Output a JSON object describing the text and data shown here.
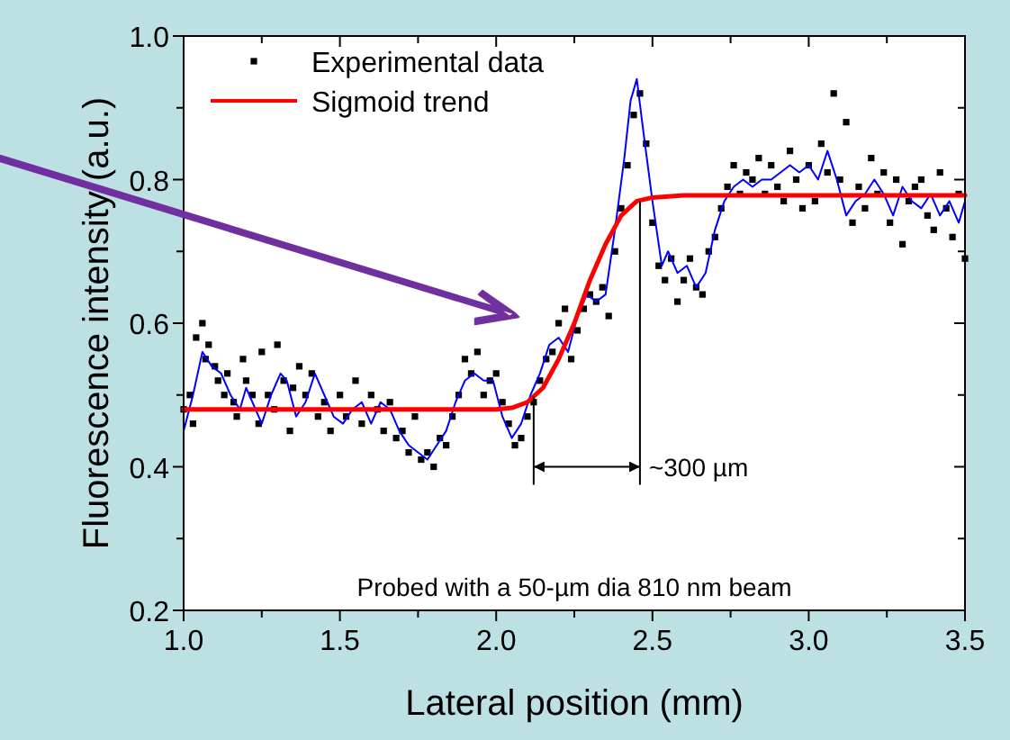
{
  "chart_data": {
    "type": "scatter",
    "xlabel": "Lateral position (mm)",
    "ylabel": "Fluorescence intensity (a.u.)",
    "xlim": [
      1.0,
      3.5
    ],
    "ylim": [
      0.2,
      1.0
    ],
    "xticks": [
      {
        "value": 1.0,
        "label": "1.0"
      },
      {
        "value": 1.25,
        "label": null
      },
      {
        "value": 1.5,
        "label": "1.5"
      },
      {
        "value": 1.75,
        "label": null
      },
      {
        "value": 2.0,
        "label": "2.0"
      },
      {
        "value": 2.25,
        "label": null
      },
      {
        "value": 2.5,
        "label": "2.5"
      },
      {
        "value": 2.75,
        "label": null
      },
      {
        "value": 3.0,
        "label": "3.0"
      },
      {
        "value": 3.25,
        "label": null
      },
      {
        "value": 3.5,
        "label": "3.5"
      }
    ],
    "yticks": [
      {
        "value": 0.2,
        "label": "0.2"
      },
      {
        "value": 0.3,
        "label": null
      },
      {
        "value": 0.4,
        "label": "0.4"
      },
      {
        "value": 0.5,
        "label": null
      },
      {
        "value": 0.6,
        "label": "0.6"
      },
      {
        "value": 0.7,
        "label": null
      },
      {
        "value": 0.8,
        "label": "0.8"
      },
      {
        "value": 0.9,
        "label": null
      },
      {
        "value": 1.0,
        "label": "1.0"
      }
    ],
    "grid": false,
    "legend": "top left",
    "annotations": [
      {
        "text": "~300 µm",
        "x": 2.46,
        "y": 0.77
      },
      "Probed with a 50-µm dia 810 nm beam"
    ],
    "series": [
      {
        "name": "Experimental data",
        "marker": "square",
        "color": "#000000",
        "x": [
          1.0,
          1.02,
          1.03,
          1.04,
          1.06,
          1.07,
          1.08,
          1.1,
          1.11,
          1.13,
          1.14,
          1.16,
          1.17,
          1.19,
          1.2,
          1.22,
          1.24,
          1.25,
          1.27,
          1.29,
          1.3,
          1.32,
          1.34,
          1.35,
          1.37,
          1.39,
          1.41,
          1.43,
          1.45,
          1.47,
          1.5,
          1.52,
          1.55,
          1.57,
          1.6,
          1.62,
          1.64,
          1.66,
          1.68,
          1.7,
          1.72,
          1.74,
          1.76,
          1.78,
          1.8,
          1.82,
          1.84,
          1.86,
          1.88,
          1.9,
          1.92,
          1.94,
          1.96,
          1.98,
          2.0,
          2.02,
          2.04,
          2.06,
          2.08,
          2.1,
          2.12,
          2.14,
          2.16,
          2.18,
          2.2,
          2.22,
          2.24,
          2.26,
          2.28,
          2.3,
          2.32,
          2.34,
          2.36,
          2.38,
          2.4,
          2.42,
          2.44,
          2.46,
          2.48,
          2.5,
          2.52,
          2.54,
          2.56,
          2.58,
          2.6,
          2.62,
          2.64,
          2.66,
          2.68,
          2.7,
          2.72,
          2.74,
          2.76,
          2.78,
          2.8,
          2.82,
          2.84,
          2.86,
          2.88,
          2.9,
          2.92,
          2.94,
          2.96,
          2.98,
          3.0,
          3.02,
          3.04,
          3.06,
          3.08,
          3.1,
          3.12,
          3.14,
          3.16,
          3.18,
          3.2,
          3.22,
          3.24,
          3.26,
          3.28,
          3.3,
          3.32,
          3.34,
          3.36,
          3.38,
          3.4,
          3.42,
          3.44,
          3.46,
          3.48,
          3.5
        ],
        "values": [
          0.48,
          0.5,
          0.46,
          0.58,
          0.6,
          0.55,
          0.57,
          0.54,
          0.52,
          0.5,
          0.53,
          0.49,
          0.47,
          0.55,
          0.52,
          0.5,
          0.46,
          0.56,
          0.5,
          0.48,
          0.57,
          0.52,
          0.45,
          0.51,
          0.54,
          0.5,
          0.53,
          0.47,
          0.49,
          0.45,
          0.5,
          0.47,
          0.52,
          0.46,
          0.5,
          0.48,
          0.45,
          0.49,
          0.44,
          0.45,
          0.42,
          0.47,
          0.41,
          0.42,
          0.4,
          0.44,
          0.43,
          0.47,
          0.5,
          0.55,
          0.53,
          0.56,
          0.5,
          0.52,
          0.53,
          0.49,
          0.46,
          0.43,
          0.44,
          0.47,
          0.49,
          0.52,
          0.55,
          0.56,
          0.6,
          0.62,
          0.55,
          0.59,
          0.62,
          0.64,
          0.63,
          0.65,
          0.61,
          0.7,
          0.76,
          0.82,
          0.89,
          0.92,
          0.85,
          0.74,
          0.68,
          0.66,
          0.69,
          0.63,
          0.66,
          0.69,
          0.65,
          0.64,
          0.7,
          0.72,
          0.76,
          0.79,
          0.82,
          0.78,
          0.81,
          0.8,
          0.83,
          0.78,
          0.82,
          0.79,
          0.77,
          0.84,
          0.8,
          0.76,
          0.82,
          0.77,
          0.85,
          0.81,
          0.92,
          0.8,
          0.88,
          0.74,
          0.79,
          0.76,
          0.83,
          0.78,
          0.81,
          0.74,
          0.8,
          0.71,
          0.77,
          0.79,
          0.8,
          0.75,
          0.73,
          0.81,
          0.76,
          0.72,
          0.78,
          0.69
        ]
      },
      {
        "type": "line",
        "marker": "none",
        "color": "#0000ff",
        "x": [
          1.0,
          1.03,
          1.06,
          1.09,
          1.12,
          1.15,
          1.18,
          1.2,
          1.23,
          1.25,
          1.28,
          1.31,
          1.33,
          1.36,
          1.39,
          1.42,
          1.45,
          1.48,
          1.51,
          1.54,
          1.57,
          1.6,
          1.63,
          1.66,
          1.69,
          1.72,
          1.75,
          1.78,
          1.81,
          1.84,
          1.87,
          1.9,
          1.93,
          1.96,
          1.99,
          2.02,
          2.05,
          2.08,
          2.11,
          2.14,
          2.17,
          2.2,
          2.23,
          2.26,
          2.29,
          2.32,
          2.35,
          2.38,
          2.41,
          2.43,
          2.45,
          2.47,
          2.5,
          2.53,
          2.55,
          2.58,
          2.61,
          2.64,
          2.67,
          2.7,
          2.73,
          2.76,
          2.79,
          2.82,
          2.85,
          2.88,
          2.91,
          2.94,
          2.97,
          3.0,
          3.03,
          3.06,
          3.09,
          3.12,
          3.15,
          3.18,
          3.21,
          3.24,
          3.27,
          3.3,
          3.33,
          3.36,
          3.39,
          3.42,
          3.45,
          3.48,
          3.5
        ],
        "values": [
          0.45,
          0.5,
          0.56,
          0.54,
          0.53,
          0.5,
          0.48,
          0.51,
          0.48,
          0.46,
          0.5,
          0.53,
          0.52,
          0.47,
          0.49,
          0.53,
          0.5,
          0.47,
          0.46,
          0.48,
          0.49,
          0.46,
          0.49,
          0.48,
          0.45,
          0.43,
          0.42,
          0.41,
          0.43,
          0.45,
          0.49,
          0.52,
          0.53,
          0.52,
          0.52,
          0.47,
          0.44,
          0.46,
          0.5,
          0.53,
          0.57,
          0.58,
          0.56,
          0.61,
          0.64,
          0.63,
          0.64,
          0.73,
          0.83,
          0.91,
          0.94,
          0.87,
          0.77,
          0.68,
          0.7,
          0.67,
          0.68,
          0.65,
          0.67,
          0.73,
          0.77,
          0.79,
          0.8,
          0.79,
          0.8,
          0.8,
          0.81,
          0.82,
          0.81,
          0.82,
          0.8,
          0.84,
          0.8,
          0.75,
          0.77,
          0.78,
          0.8,
          0.78,
          0.75,
          0.79,
          0.77,
          0.76,
          0.78,
          0.75,
          0.77,
          0.74,
          0.77
        ]
      },
      {
        "name": "Sigmoid trend",
        "type": "line",
        "marker": "none",
        "color": "#ff0000",
        "x": [
          1.0,
          2.0,
          2.05,
          2.1,
          2.15,
          2.2,
          2.25,
          2.3,
          2.35,
          2.4,
          2.45,
          2.5,
          2.6,
          3.5
        ],
        "values": [
          0.48,
          0.48,
          0.482,
          0.49,
          0.51,
          0.55,
          0.6,
          0.66,
          0.71,
          0.75,
          0.77,
          0.775,
          0.778,
          0.778
        ]
      }
    ]
  }
}
